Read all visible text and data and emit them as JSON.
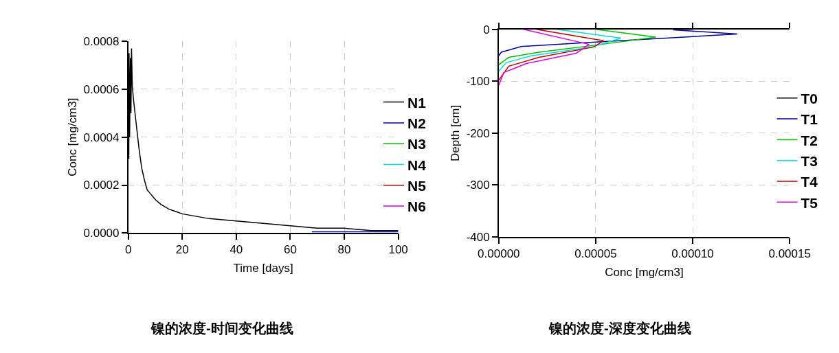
{
  "chart_data": [
    {
      "type": "line",
      "title": "镍的浓度-时间变化曲线",
      "xlabel": "Time [days]",
      "ylabel": "Conc [mg/cm3]",
      "xlim": [
        0,
        100
      ],
      "xticks": [
        0,
        20,
        40,
        60,
        80,
        100
      ],
      "ylim": [
        0,
        0.0008
      ],
      "yticks": [
        {
          "value": 0,
          "label": "0.0000"
        },
        {
          "value": 0.0002,
          "label": "0.0002"
        },
        {
          "value": 0.0004,
          "label": "0.0004"
        },
        {
          "value": 0.0006,
          "label": "0.0006"
        },
        {
          "value": 0.0008,
          "label": "0.0008"
        }
      ],
      "grid": true,
      "legend": "right",
      "marker": "none",
      "line_style": "solid",
      "series": [
        {
          "name": "N1",
          "color": "#000000",
          "x": [
            0.2,
            0.3,
            0.5,
            0.8,
            1.0,
            1.2,
            1.5,
            2,
            3,
            4,
            5,
            6,
            7,
            10,
            12,
            15,
            20,
            30,
            40,
            50,
            60,
            70,
            80,
            90,
            100
          ],
          "values": [
            0.00031,
            0.00075,
            0.0004,
            0.00073,
            0.0005,
            0.00077,
            0.00061,
            0.00055,
            0.00045,
            0.00035,
            0.00027,
            0.00022,
            0.00018,
            0.00014,
            0.00012,
            0.0001,
            8e-05,
            6e-05,
            5e-05,
            4e-05,
            3e-05,
            2e-05,
            2e-05,
            1e-05,
            1e-05
          ]
        },
        {
          "name": "N2",
          "color": "#0000a0",
          "x": [
            68,
            100
          ],
          "values": [
            5e-06,
            5e-06
          ]
        },
        {
          "name": "N3",
          "color": "#00c000"
        },
        {
          "name": "N4",
          "color": "#00e0e0"
        },
        {
          "name": "N5",
          "color": "#c00000"
        },
        {
          "name": "N6",
          "color": "#e000e0"
        }
      ]
    },
    {
      "type": "line",
      "title": "镍的浓度-深度变化曲线",
      "xlabel": "Conc [mg/cm3]",
      "ylabel": "Depth [cm]",
      "xlim": [
        0,
        0.00015
      ],
      "xticks": [
        {
          "value": 0,
          "label": "0.00000"
        },
        {
          "value": 5e-05,
          "label": "0.00005"
        },
        {
          "value": 0.0001,
          "label": "0.00010"
        },
        {
          "value": 0.00015,
          "label": "0.00015"
        }
      ],
      "ylim": [
        -400,
        0
      ],
      "yticks": [
        -400,
        -300,
        -200,
        -100,
        0
      ],
      "grid": true,
      "legend": "right",
      "marker": "none",
      "line_style": "solid",
      "series": [
        {
          "name": "T0",
          "color": "#000000",
          "x": [
            9e-05,
            0.0001
          ],
          "values": [
            0,
            0
          ]
        },
        {
          "name": "T1",
          "color": "#0000a0",
          "x": [
            9e-05,
            0.000123,
            5.3e-05,
            1.16e-05,
            1.3e-06,
            0
          ],
          "values": [
            -1,
            -9,
            -24,
            -33,
            -44,
            -51
          ]
        },
        {
          "name": "T2",
          "color": "#00c000",
          "x": [
            5e-05,
            8.1e-05,
            5.3e-05,
            2.07e-05,
            5.2e-06,
            0
          ],
          "values": [
            0,
            -15,
            -29,
            -44,
            -54,
            -68
          ]
        },
        {
          "name": "T3",
          "color": "#00e0e0",
          "x": [
            3e-05,
            6.3e-05,
            4.8e-05,
            1.68e-05,
            3.9e-06,
            0
          ],
          "values": [
            0,
            -17,
            -34,
            -51,
            -64,
            -81
          ]
        },
        {
          "name": "T4",
          "color": "#c00000",
          "x": [
            1.94e-05,
            5.4e-05,
            4.9e-05,
            2.07e-05,
            5.2e-06,
            0
          ],
          "values": [
            0,
            -22,
            -34,
            -54,
            -71,
            -98
          ]
        },
        {
          "name": "T5",
          "color": "#e000e0",
          "x": [
            1.29e-05,
            4.66e-05,
            4e-05,
            1.42e-05,
            2.6e-06,
            0
          ],
          "values": [
            0,
            -29,
            -46,
            -66,
            -83,
            -108
          ]
        }
      ]
    }
  ]
}
